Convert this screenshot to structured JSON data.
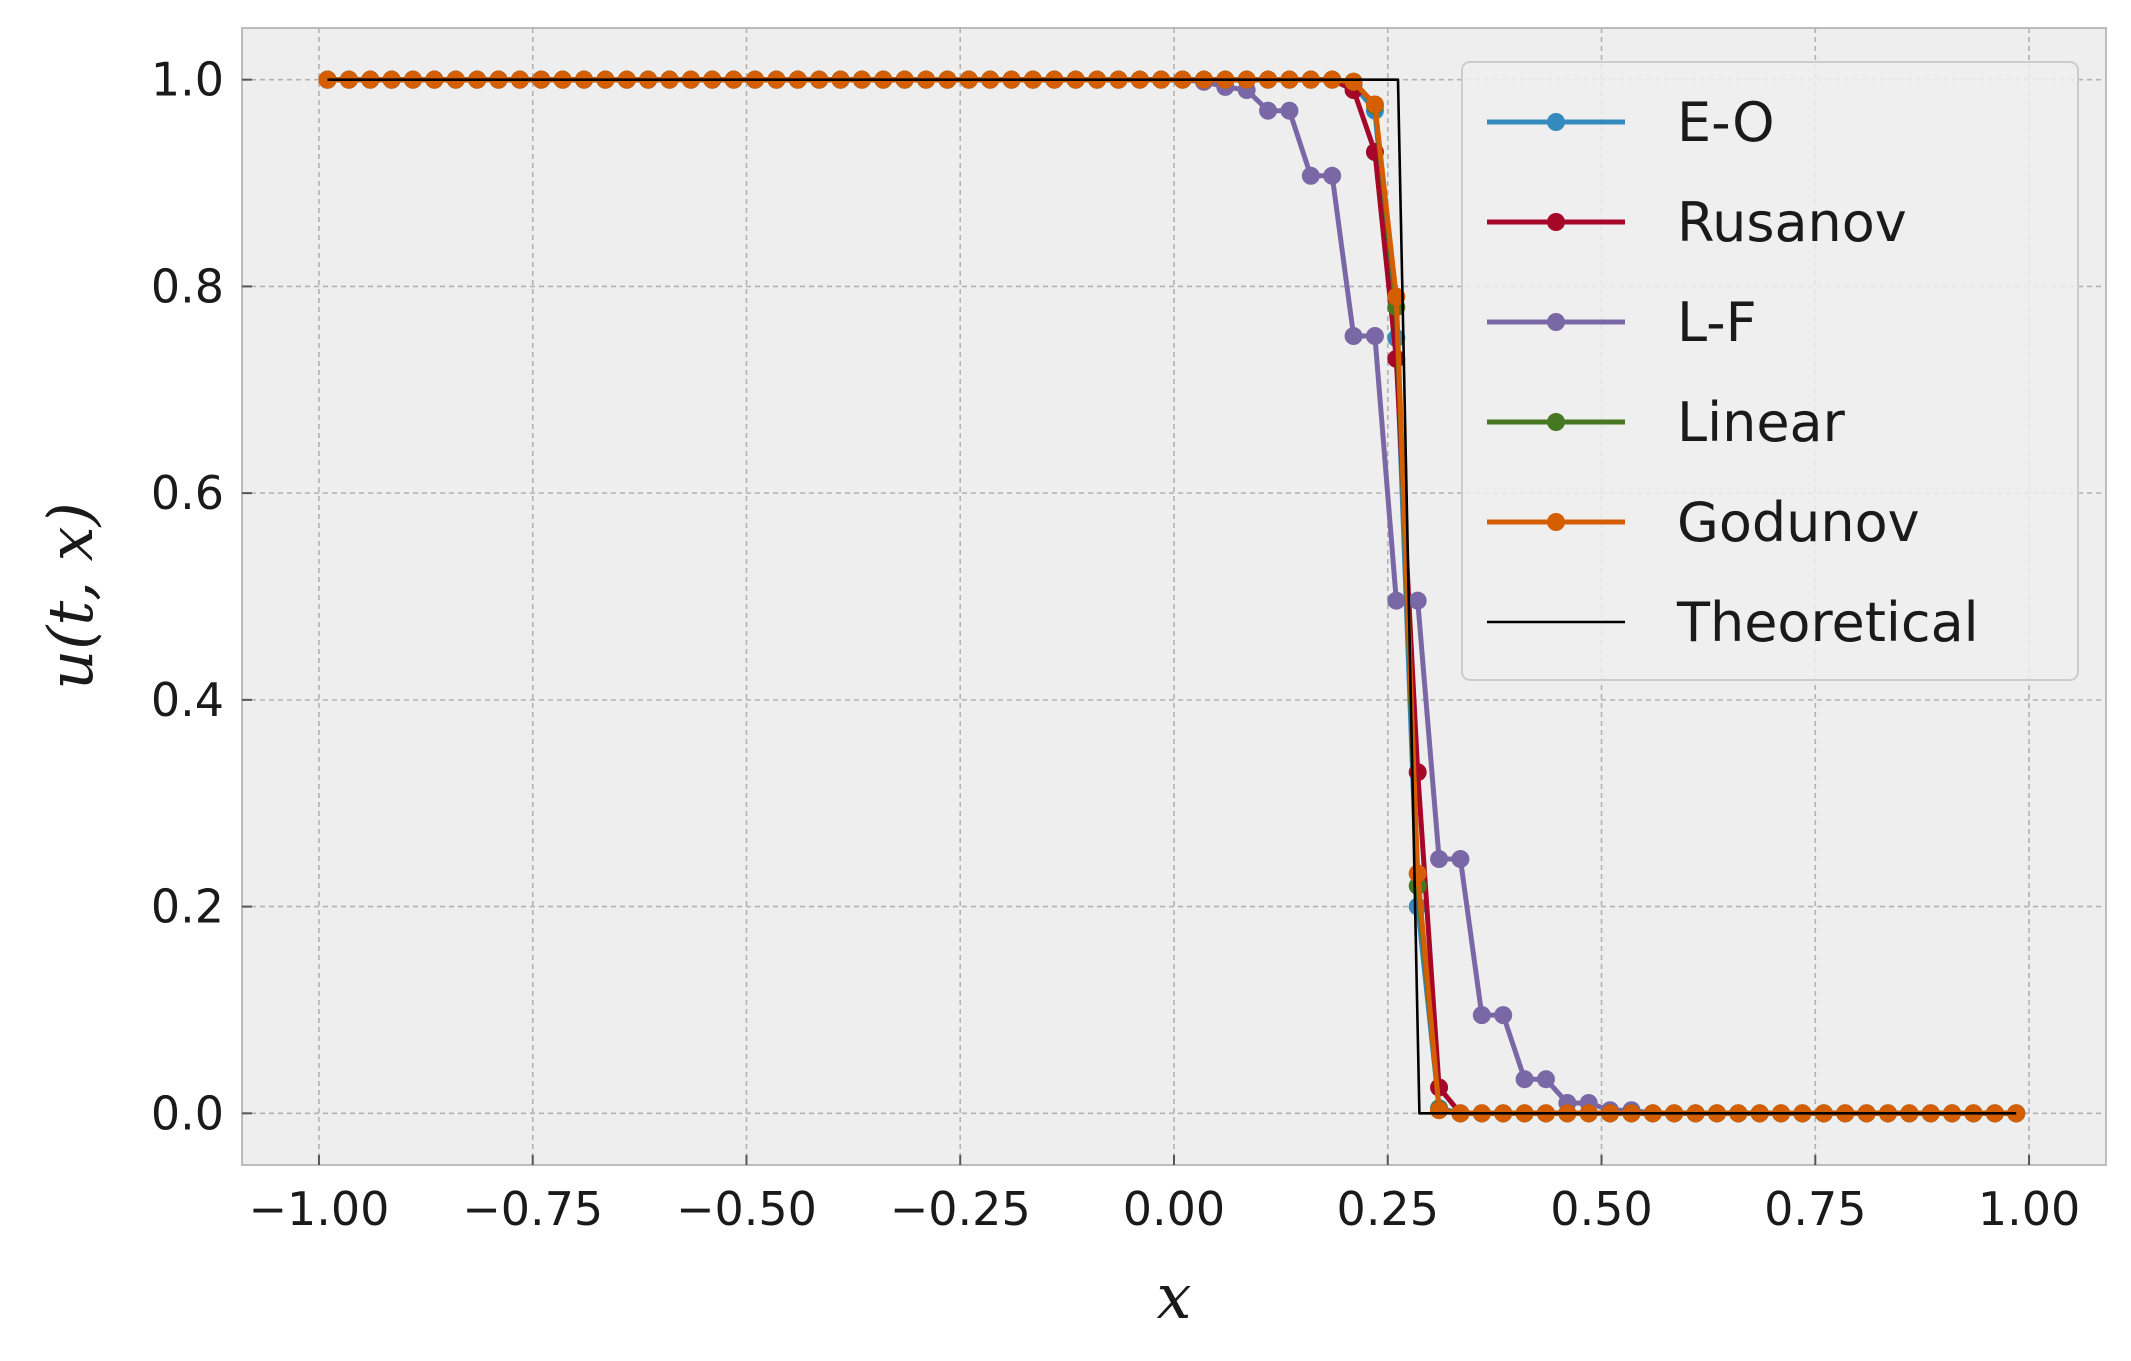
{
  "chart_data": {
    "type": "line",
    "xlabel": "x",
    "ylabel": "u(t, x)",
    "xlim": [
      -1.09,
      1.09
    ],
    "ylim": [
      -0.05,
      1.05
    ],
    "xticks": [
      -1.0,
      -0.75,
      -0.5,
      -0.25,
      0.0,
      0.25,
      0.5,
      0.75,
      1.0
    ],
    "xtick_labels": [
      "−1.00",
      "−0.75",
      "−0.50",
      "−0.25",
      "0.00",
      "0.25",
      "0.50",
      "0.75",
      "1.00"
    ],
    "yticks": [
      0.0,
      0.2,
      0.4,
      0.6,
      0.8,
      1.0
    ],
    "ytick_labels": [
      "0.0",
      "0.2",
      "0.4",
      "0.6",
      "0.8",
      "1.0"
    ],
    "grid": true,
    "legend_position": "top-right",
    "x": [
      -0.99,
      -0.965,
      -0.94,
      -0.915,
      -0.89,
      -0.865,
      -0.84,
      -0.815,
      -0.79,
      -0.765,
      -0.74,
      -0.715,
      -0.69,
      -0.665,
      -0.64,
      -0.615,
      -0.59,
      -0.565,
      -0.54,
      -0.515,
      -0.49,
      -0.465,
      -0.44,
      -0.415,
      -0.39,
      -0.365,
      -0.34,
      -0.315,
      -0.29,
      -0.265,
      -0.24,
      -0.215,
      -0.19,
      -0.165,
      -0.14,
      -0.115,
      -0.09,
      -0.065,
      -0.04,
      -0.015,
      0.01,
      0.035,
      0.06,
      0.085,
      0.11,
      0.135,
      0.16,
      0.185,
      0.21,
      0.235,
      0.26,
      0.285,
      0.31,
      0.335,
      0.36,
      0.385,
      0.41,
      0.435,
      0.46,
      0.485,
      0.51,
      0.535,
      0.56,
      0.585,
      0.61,
      0.635,
      0.66,
      0.685,
      0.71,
      0.735,
      0.76,
      0.785,
      0.81,
      0.835,
      0.86,
      0.885,
      0.91,
      0.935,
      0.96,
      0.985
    ],
    "series": [
      {
        "name": "E-O",
        "color": "#348ABD",
        "marker": true,
        "values": [
          1,
          1,
          1,
          1,
          1,
          1,
          1,
          1,
          1,
          1,
          1,
          1,
          1,
          1,
          1,
          1,
          1,
          1,
          1,
          1,
          1,
          1,
          1,
          1,
          1,
          1,
          1,
          1,
          1,
          1,
          1,
          1,
          1,
          1,
          1,
          1,
          1,
          1,
          1,
          1,
          1,
          1,
          1,
          1,
          1,
          1,
          1,
          1,
          0.995,
          0.97,
          0.75,
          0.2,
          0.005,
          0,
          0,
          0,
          0,
          0,
          0,
          0,
          0,
          0,
          0,
          0,
          0,
          0,
          0,
          0,
          0,
          0,
          0,
          0,
          0,
          0,
          0,
          0,
          0,
          0,
          0,
          0
        ]
      },
      {
        "name": "Rusanov",
        "color": "#A60628",
        "marker": true,
        "values": [
          1,
          1,
          1,
          1,
          1,
          1,
          1,
          1,
          1,
          1,
          1,
          1,
          1,
          1,
          1,
          1,
          1,
          1,
          1,
          1,
          1,
          1,
          1,
          1,
          1,
          1,
          1,
          1,
          1,
          1,
          1,
          1,
          1,
          1,
          1,
          1,
          1,
          1,
          1,
          1,
          1,
          1,
          1,
          1,
          1,
          1,
          1,
          1,
          0.99,
          0.93,
          0.73,
          0.33,
          0.025,
          0,
          0,
          0,
          0,
          0,
          0,
          0,
          0,
          0,
          0,
          0,
          0,
          0,
          0,
          0,
          0,
          0,
          0,
          0,
          0,
          0,
          0,
          0,
          0,
          0,
          0,
          0
        ]
      },
      {
        "name": "L-F",
        "color": "#7A68A6",
        "marker": true,
        "values": [
          1,
          1,
          1,
          1,
          1,
          1,
          1,
          1,
          1,
          1,
          1,
          1,
          1,
          1,
          1,
          1,
          1,
          1,
          1,
          1,
          1,
          1,
          1,
          1,
          1,
          1,
          1,
          1,
          1,
          1,
          1,
          1,
          1,
          1,
          1,
          1,
          1,
          1,
          1,
          1,
          1,
          0.998,
          0.993,
          0.99,
          0.97,
          0.97,
          0.907,
          0.907,
          0.752,
          0.752,
          0.496,
          0.496,
          0.246,
          0.246,
          0.095,
          0.095,
          0.033,
          0.033,
          0.01,
          0.01,
          0.003,
          0.003,
          0,
          0,
          0,
          0,
          0,
          0,
          0,
          0,
          0,
          0,
          0,
          0,
          0,
          0,
          0,
          0,
          0,
          0
        ]
      },
      {
        "name": "Linear",
        "color": "#467821",
        "marker": true,
        "values": [
          1,
          1,
          1,
          1,
          1,
          1,
          1,
          1,
          1,
          1,
          1,
          1,
          1,
          1,
          1,
          1,
          1,
          1,
          1,
          1,
          1,
          1,
          1,
          1,
          1,
          1,
          1,
          1,
          1,
          1,
          1,
          1,
          1,
          1,
          1,
          1,
          1,
          1,
          1,
          1,
          1,
          1,
          1,
          1,
          1,
          1,
          1,
          1,
          0.998,
          0.975,
          0.78,
          0.22,
          0.004,
          0,
          0,
          0,
          0,
          0,
          0,
          0,
          0,
          0,
          0,
          0,
          0,
          0,
          0,
          0,
          0,
          0,
          0,
          0,
          0,
          0,
          0,
          0,
          0,
          0,
          0,
          0
        ]
      },
      {
        "name": "Godunov",
        "color": "#D55E00",
        "marker": true,
        "values": [
          1,
          1,
          1,
          1,
          1,
          1,
          1,
          1,
          1,
          1,
          1,
          1,
          1,
          1,
          1,
          1,
          1,
          1,
          1,
          1,
          1,
          1,
          1,
          1,
          1,
          1,
          1,
          1,
          1,
          1,
          1,
          1,
          1,
          1,
          1,
          1,
          1,
          1,
          1,
          1,
          1,
          1,
          1,
          1,
          1,
          1,
          1,
          1,
          0.998,
          0.976,
          0.79,
          0.232,
          0.003,
          0,
          0,
          0,
          0,
          0,
          0,
          0,
          0,
          0,
          0,
          0,
          0,
          0,
          0,
          0,
          0,
          0,
          0,
          0,
          0,
          0,
          0,
          0,
          0,
          0,
          0,
          0
        ]
      },
      {
        "name": "Theoretical",
        "color": "#000000",
        "marker": false,
        "x": [
          -0.99,
          0.262,
          0.287,
          0.985
        ],
        "values": [
          1,
          1,
          0,
          0
        ]
      }
    ]
  }
}
